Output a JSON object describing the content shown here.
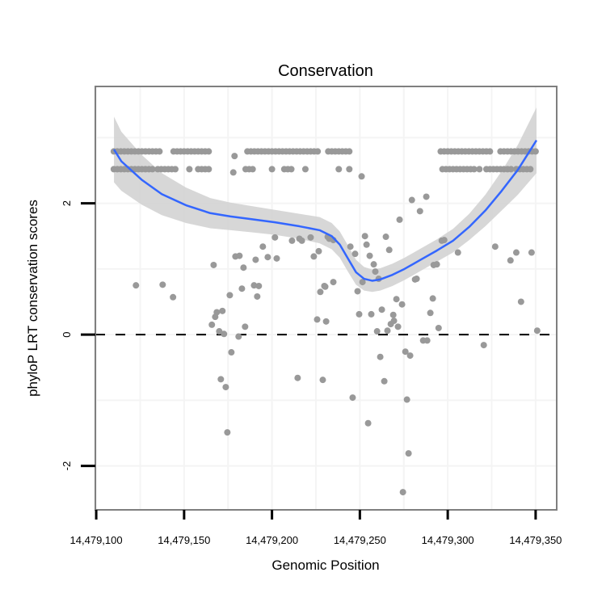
{
  "chart_data": {
    "type": "scatter",
    "title": "Conservation",
    "xlabel": "Genomic Position",
    "ylabel": "phyloP LRT conservation scores",
    "x_offset": 14479000,
    "xlim": [
      99.5,
      362
    ],
    "ylim": [
      -2.67,
      3.78
    ],
    "x_ticks": [
      100,
      150,
      200,
      250,
      300,
      350
    ],
    "x_tick_labels": [
      "14,479,100",
      "14,479,150",
      "14,479,200",
      "14,479,250",
      "14,479,300",
      "14,479,350"
    ],
    "y_ticks": [
      -2,
      0,
      2
    ],
    "y_tick_labels": [
      "-2",
      "0",
      "2"
    ],
    "x_minor_grid": [
      125,
      175,
      225,
      275,
      325
    ],
    "y_minor_grid": [
      -1,
      1,
      3
    ],
    "grid": true,
    "reference_line": {
      "y": 0,
      "style": "dashed"
    },
    "colors": {
      "points": "#999999",
      "smooth": "#3366FF",
      "band": "#D3D3D3",
      "panel_border": "#7F7F7F",
      "grid": "#F4F4F4"
    },
    "points_row_high": {
      "y": 2.79,
      "x_runs": [
        [
          110,
          136
        ],
        [
          144,
          164
        ],
        [
          186,
          226
        ],
        [
          232,
          244
        ],
        [
          296,
          324
        ],
        [
          330,
          350
        ]
      ]
    },
    "points_row_low": {
      "y": 2.52,
      "x_runs": [
        [
          110,
          132
        ],
        [
          135,
          146
        ],
        [
          153,
          153
        ],
        [
          158,
          165
        ],
        [
          185,
          190
        ],
        [
          200,
          200
        ],
        [
          207,
          211
        ],
        [
          219,
          219
        ],
        [
          238,
          238
        ],
        [
          244,
          244
        ],
        [
          297,
          315
        ],
        [
          318,
          318
        ],
        [
          322,
          336
        ],
        [
          339,
          348
        ]
      ]
    },
    "points": [
      [
        178.7,
        2.72
      ],
      [
        178,
        2.47
      ],
      [
        251,
        2.41
      ],
      [
        122.6,
        0.75
      ],
      [
        137.8,
        0.76
      ],
      [
        143.7,
        0.57
      ],
      [
        166.8,
        1.06
      ],
      [
        165.8,
        0.15
      ],
      [
        167.7,
        0.27
      ],
      [
        168.6,
        0.34
      ],
      [
        171.8,
        0.36
      ],
      [
        170,
        0.05
      ],
      [
        172.7,
        0.01
      ],
      [
        176,
        0.6
      ],
      [
        179.2,
        1.19
      ],
      [
        181.5,
        1.2
      ],
      [
        183.8,
        1.02
      ],
      [
        182.9,
        0.7
      ],
      [
        184.7,
        0.12
      ],
      [
        181,
        -0.03
      ],
      [
        189.8,
        0.75
      ],
      [
        192.5,
        0.74
      ],
      [
        191.6,
        0.58
      ],
      [
        190.7,
        1.14
      ],
      [
        194.8,
        1.34
      ],
      [
        197.6,
        1.18
      ],
      [
        202.7,
        1.16
      ],
      [
        201.7,
        1.48
      ],
      [
        211.4,
        1.43
      ],
      [
        215.6,
        1.46
      ],
      [
        217,
        1.43
      ],
      [
        222,
        1.48
      ],
      [
        223.8,
        1.19
      ],
      [
        226.6,
        1.27
      ],
      [
        227.5,
        0.65
      ],
      [
        229.8,
        0.74
      ],
      [
        225.7,
        0.23
      ],
      [
        230.8,
        0.2
      ],
      [
        231.7,
        1.49
      ],
      [
        279.6,
        2.05
      ],
      [
        287.8,
        2.1
      ],
      [
        284.2,
        1.88
      ],
      [
        272.6,
        1.75
      ],
      [
        252.9,
        1.5
      ],
      [
        264.8,
        1.49
      ],
      [
        253.8,
        1.37
      ],
      [
        266.7,
        1.29
      ],
      [
        244.6,
        1.34
      ],
      [
        247.3,
        1.23
      ],
      [
        255.6,
        1.2
      ],
      [
        257.9,
        1.07
      ],
      [
        258.8,
        0.96
      ],
      [
        260.7,
        0.85
      ],
      [
        251.5,
        0.8
      ],
      [
        234.9,
        0.8
      ],
      [
        230.3,
        0.73
      ],
      [
        248.7,
        0.66
      ],
      [
        232.6,
        1.46
      ],
      [
        234.9,
        1.44
      ],
      [
        270.8,
        0.54
      ],
      [
        274,
        0.46
      ],
      [
        262.5,
        0.38
      ],
      [
        249.6,
        0.31
      ],
      [
        256.5,
        0.31
      ],
      [
        269,
        0.3
      ],
      [
        269.4,
        0.21
      ],
      [
        267.6,
        0.16
      ],
      [
        271.7,
        0.12
      ],
      [
        259.8,
        0.05
      ],
      [
        265.7,
        0.06
      ],
      [
        281.4,
        0.84
      ],
      [
        282.3,
        0.85
      ],
      [
        292,
        1.06
      ],
      [
        293.8,
        1.07
      ],
      [
        296.6,
        1.43
      ],
      [
        298,
        1.44
      ],
      [
        305.8,
        1.25
      ],
      [
        291.5,
        0.55
      ],
      [
        290.1,
        0.33
      ],
      [
        294.8,
        0.1
      ],
      [
        286,
        -0.09
      ],
      [
        288.3,
        -0.09
      ],
      [
        320.5,
        -0.16
      ],
      [
        327,
        1.34
      ],
      [
        339,
        1.25
      ],
      [
        335.7,
        1.13
      ],
      [
        347.7,
        1.25
      ],
      [
        341.7,
        0.5
      ],
      [
        350.9,
        0.06
      ],
      [
        176.9,
        -0.27
      ],
      [
        170.9,
        -0.68
      ],
      [
        173.7,
        -0.8
      ],
      [
        174.6,
        -1.49
      ],
      [
        214.6,
        -0.66
      ],
      [
        228.9,
        -0.69
      ],
      [
        245.9,
        -0.96
      ],
      [
        254.7,
        -1.35
      ],
      [
        261.6,
        -0.34
      ],
      [
        263.9,
        -0.71
      ],
      [
        275.9,
        -0.26
      ],
      [
        278.6,
        -0.32
      ],
      [
        276.8,
        -0.99
      ],
      [
        277.7,
        -1.81
      ],
      [
        274.5,
        -2.4
      ]
    ],
    "smooth": {
      "x": [
        110.1,
        114.3,
        125.8,
        137.3,
        151.1,
        164.9,
        176.4,
        187.9,
        201.7,
        215.6,
        227.1,
        234,
        238.6,
        243.2,
        247.8,
        252.4,
        257,
        261.6,
        268.5,
        275.4,
        284.6,
        293.8,
        303,
        312.2,
        321.4,
        330.7,
        339.9,
        350.5
      ],
      "y": [
        2.82,
        2.64,
        2.36,
        2.14,
        1.97,
        1.85,
        1.8,
        1.76,
        1.71,
        1.65,
        1.59,
        1.5,
        1.37,
        1.16,
        0.95,
        0.85,
        0.82,
        0.84,
        0.91,
        1.0,
        1.14,
        1.28,
        1.43,
        1.64,
        1.89,
        2.19,
        2.51,
        2.96
      ],
      "se_halfwidth": [
        0.5,
        0.45,
        0.38,
        0.32,
        0.27,
        0.23,
        0.21,
        0.2,
        0.19,
        0.19,
        0.2,
        0.2,
        0.2,
        0.2,
        0.19,
        0.18,
        0.17,
        0.17,
        0.17,
        0.17,
        0.17,
        0.17,
        0.18,
        0.2,
        0.24,
        0.3,
        0.38,
        0.5
      ]
    }
  }
}
